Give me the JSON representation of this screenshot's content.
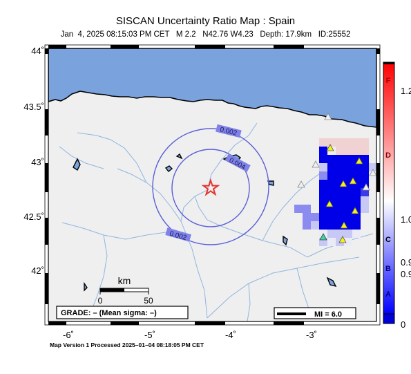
{
  "header": {
    "title": "SISCAN Uncertainty Ratio Map : Spain",
    "date": "Jan  4, 2025 08:15:03 PM CET",
    "magnitude": "M 2.2",
    "location": "N42.76 W4.23",
    "depth": "Depth: 17.9km",
    "event_id": "ID:25552"
  },
  "axes": {
    "lat_labels": [
      "44˚",
      "43.5˚",
      "43˚",
      "42.5˚",
      "42˚"
    ],
    "lon_labels": [
      "-6˚",
      "-5˚",
      "-4˚",
      "-3˚"
    ]
  },
  "contours": [
    "0.002",
    "0.004",
    "0.002"
  ],
  "scale_bar": {
    "unit": "km",
    "start": "0",
    "end": "50"
  },
  "grade_box": "GRADE: – (Mean sigma: –)",
  "mi_legend": "MI = 6.0",
  "colorbar": {
    "letters": [
      "F",
      "D",
      "C",
      "B",
      "A"
    ],
    "values": [
      "1.2",
      "1.0",
      "0.9",
      "0.9",
      "0"
    ]
  },
  "footer": "Map Version 1 Processed 2025–01–04 08:18:05 PM CET",
  "colors": {
    "sea": "#7aa3dd",
    "land": "#efefef",
    "epicenter": "#e8322a",
    "contour": "#5a5fd6",
    "station_active": "#f2f21a",
    "station_green": "#3fd1a0",
    "grid_blue": "#0000e8"
  }
}
